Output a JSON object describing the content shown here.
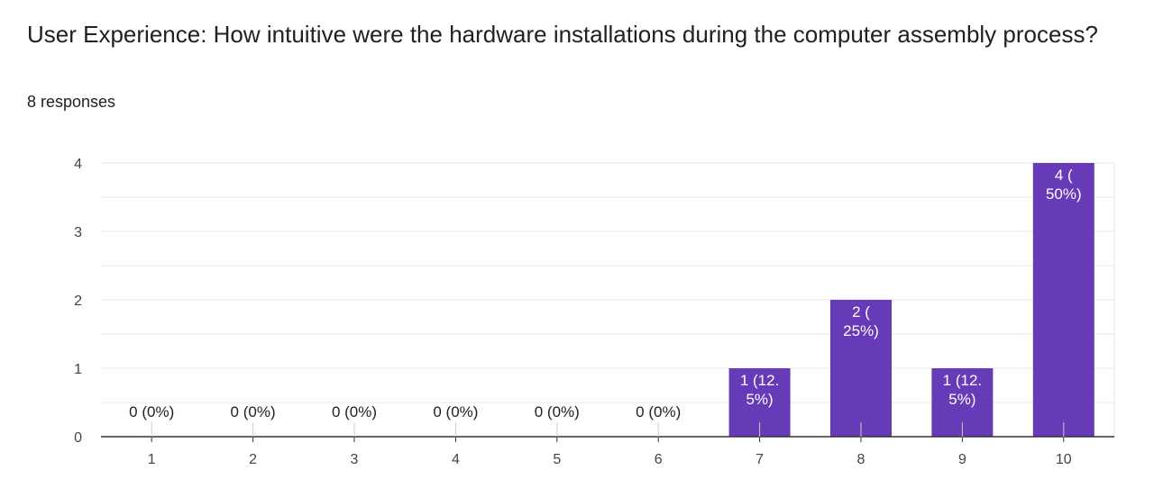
{
  "title": "User Experience: How intuitive were the hardware installations during the computer assembly process?",
  "subtitle": "8 responses",
  "colors": {
    "bar": "#673ab7",
    "grid": "#e8e8e8",
    "axis": "#333333",
    "label_on_bar": "#ffffff",
    "label_off_bar": "#202124"
  },
  "chart_data": {
    "type": "bar",
    "categories": [
      "1",
      "2",
      "3",
      "4",
      "5",
      "6",
      "7",
      "8",
      "9",
      "10"
    ],
    "values": [
      0,
      0,
      0,
      0,
      0,
      0,
      1,
      2,
      1,
      4
    ],
    "data_labels": [
      [
        "0 (0%)"
      ],
      [
        "0 (0%)"
      ],
      [
        "0 (0%)"
      ],
      [
        "0 (0%)"
      ],
      [
        "0 (0%)"
      ],
      [
        "0 (0%)"
      ],
      [
        "1 (12.",
        "5%)"
      ],
      [
        "2 (",
        "25%)"
      ],
      [
        "1 (12.",
        "5%)"
      ],
      [
        "4 (",
        "50%)"
      ]
    ],
    "ylim": [
      0,
      4
    ],
    "yticks": [
      0,
      1,
      2,
      3,
      4
    ],
    "grid": true,
    "xlabel": "",
    "ylabel": ""
  }
}
